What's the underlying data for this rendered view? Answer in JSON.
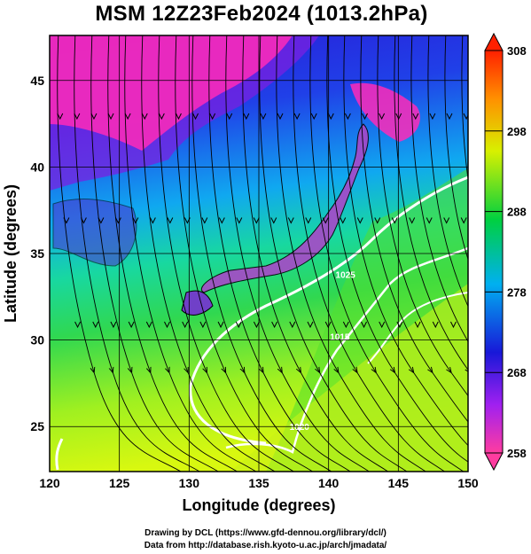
{
  "title": "MSM 12Z23Feb2024 (1013.2hPa)",
  "chart_data": {
    "type": "map",
    "xlabel": "Longitude (degrees)",
    "ylabel": "Latitude  (degrees)",
    "xlim": [
      120,
      150
    ],
    "ylim": [
      22.4,
      47.6
    ],
    "x_ticks": [
      "120",
      "125",
      "130",
      "135",
      "140",
      "145",
      "150"
    ],
    "y_ticks": [
      "25",
      "30",
      "35",
      "40",
      "45"
    ],
    "colorbar": {
      "min": 258,
      "max": 308,
      "ticks": [
        "258",
        "268",
        "278",
        "288",
        "298",
        "308"
      ],
      "colors": [
        "#ff3ca0",
        "#a020f0",
        "#1818d8",
        "#00b0f0",
        "#00d040",
        "#d8f000",
        "#ff9000",
        "#ff2000"
      ]
    },
    "isobars": [
      {
        "label": "1025",
        "lon": 140.5,
        "lat": 33.6
      },
      {
        "label": "1020",
        "lon": 137.2,
        "lat": 24.8
      },
      {
        "label": "1015",
        "lon": 140.1,
        "lat": 30.0
      }
    ],
    "grid": true,
    "field": "temperature (K) with wind streamlines and isobars (hPa)"
  },
  "credits": {
    "line1": "Drawing by DCL (https://www.gfd-dennou.org/library/dcl/)",
    "line2": "Data from http://database.rish.kyoto-u.ac.jp/arch/jmadata/"
  }
}
